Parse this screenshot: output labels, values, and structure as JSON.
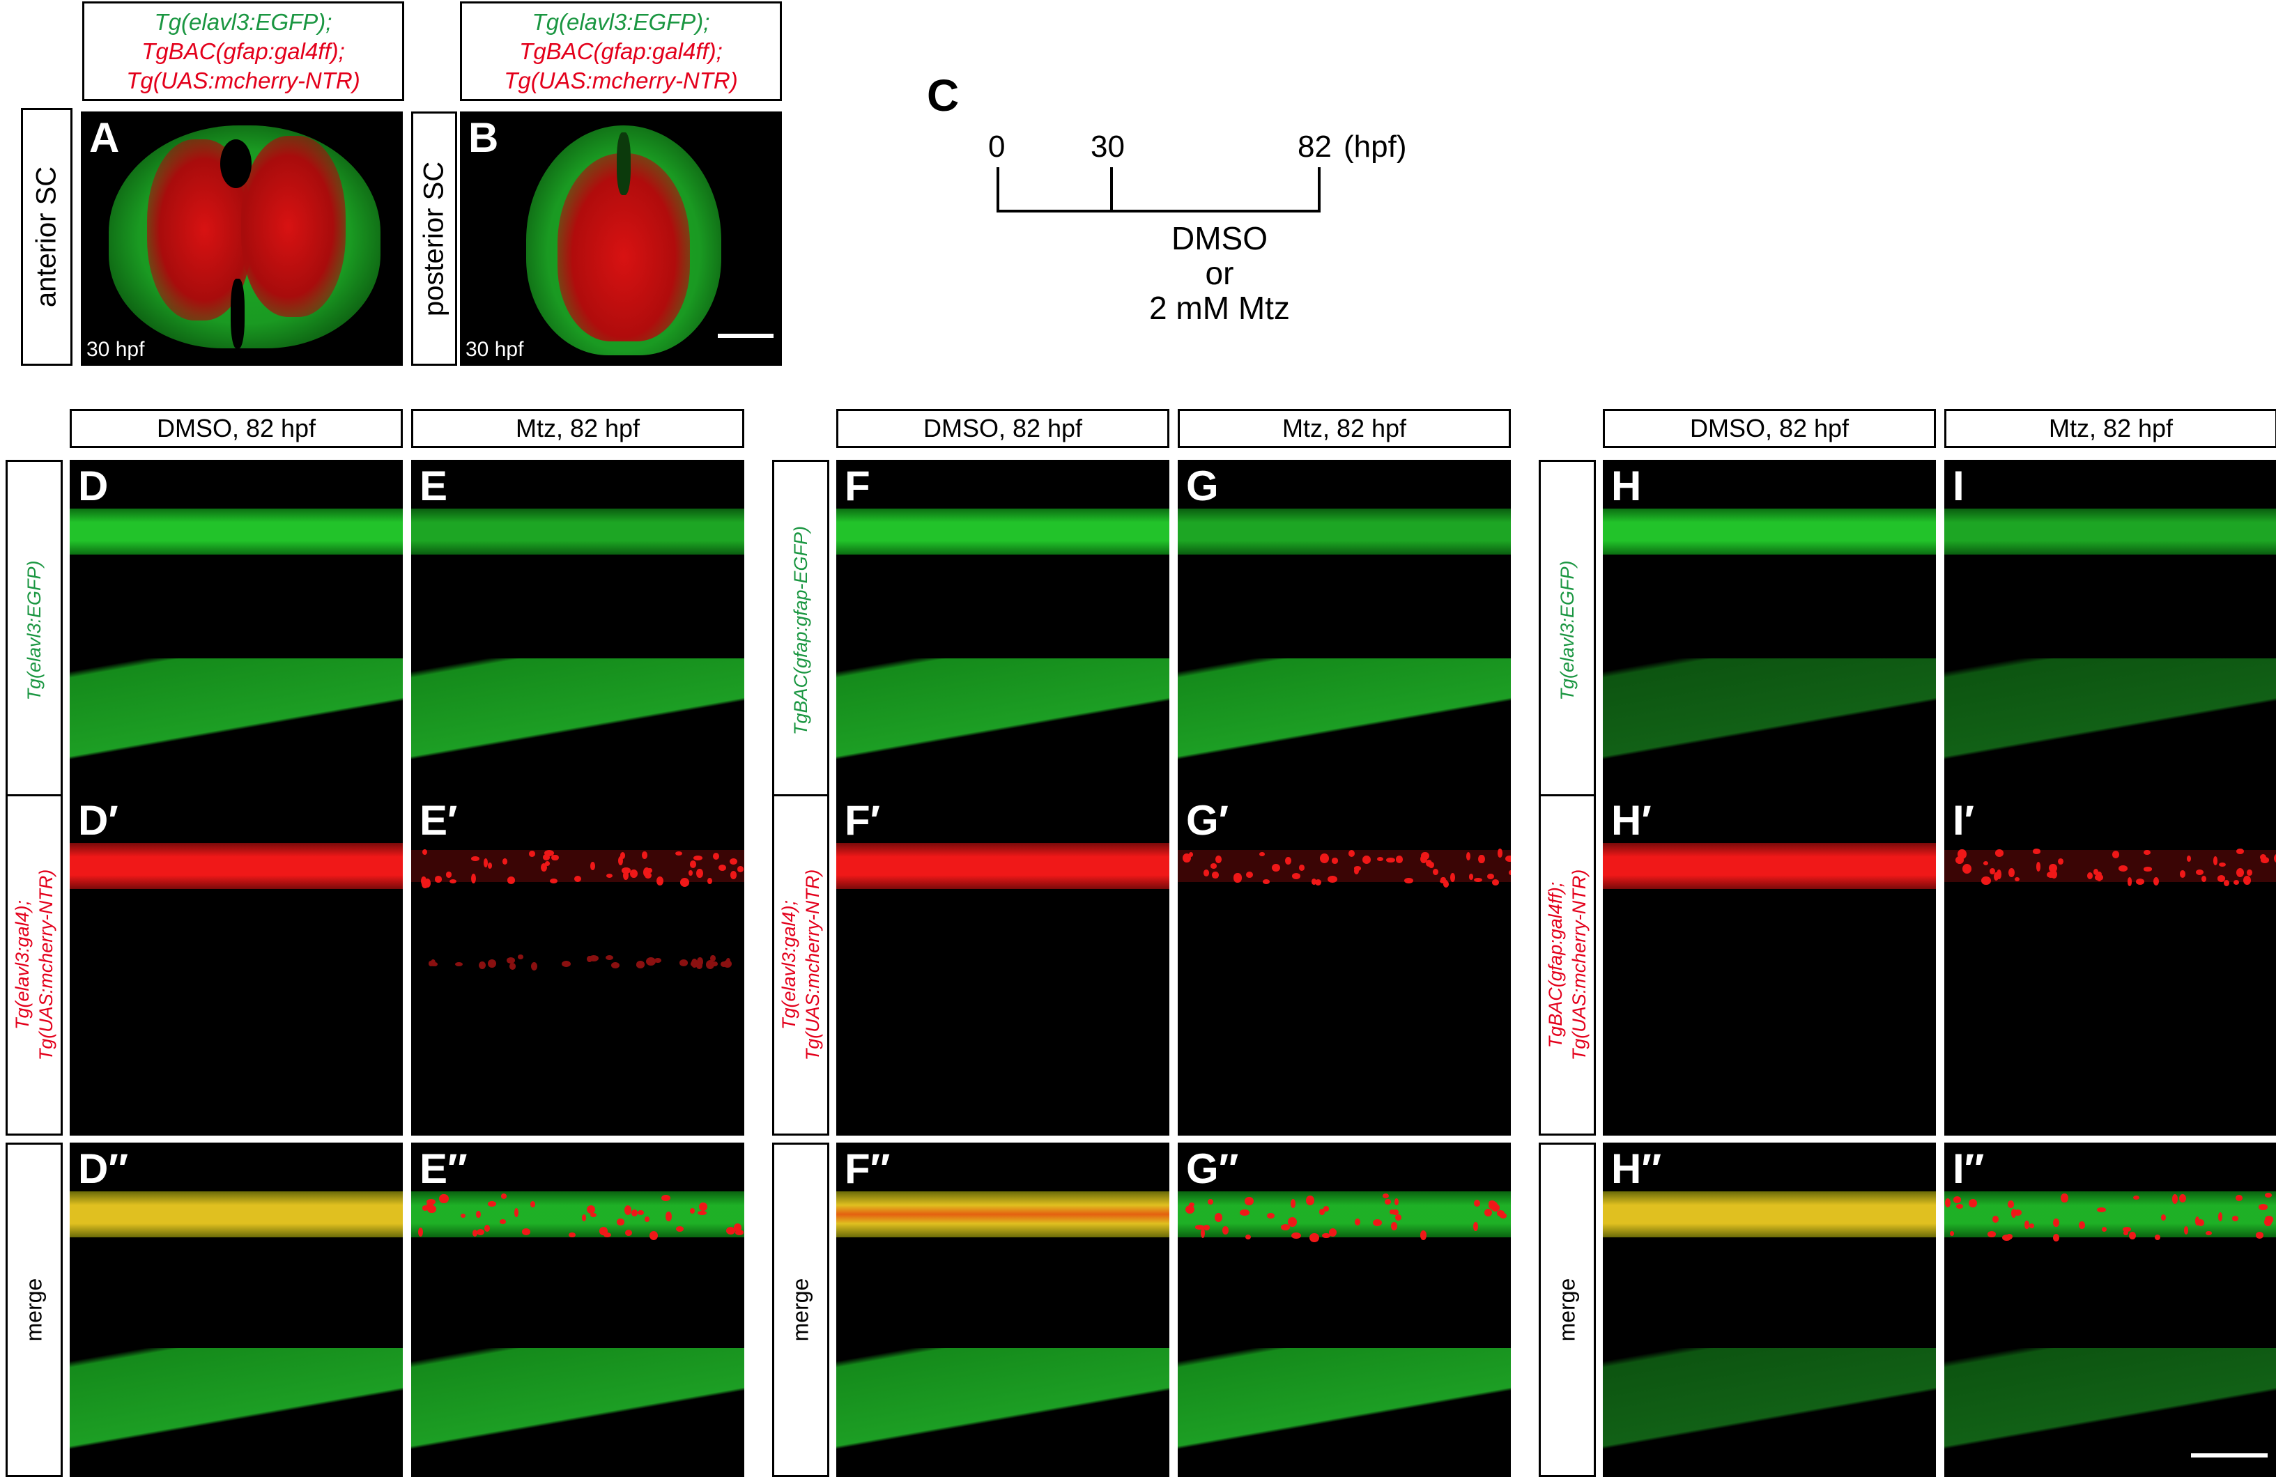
{
  "top": {
    "genotype_A": [
      "Tg(elavl3:EGFP);",
      "TgBAC(gfap:gal4ff);",
      "Tg(UAS:mcherry-NTR)"
    ],
    "genotype_B": [
      "Tg(elavl3:EGFP);",
      "TgBAC(gfap:gal4ff);",
      "Tg(UAS:mcherry-NTR)"
    ],
    "side_A": "anterior SC",
    "side_B": "posterior SC",
    "panel_A": {
      "letter": "A",
      "time": "30 hpf"
    },
    "panel_B": {
      "letter": "B",
      "time": "30 hpf"
    }
  },
  "timeline": {
    "letter": "C",
    "t0": "0",
    "t30": "30",
    "t82": "82",
    "unit": "(hpf)",
    "treatment_1": "DMSO",
    "treatment_or": "or",
    "treatment_2": "2 mM Mtz"
  },
  "groups": [
    {
      "headers": [
        "DMSO, 82 hpf",
        "Mtz, 82 hpf"
      ],
      "row_labels": [
        {
          "lines": [
            "Tg(elavl3:EGFP)"
          ],
          "color": "#1a9641"
        },
        {
          "lines": [
            "Tg(elavl3:gal4);",
            "Tg(UAS:mcherry-NTR)"
          ],
          "color": "#e3001b"
        },
        {
          "lines": [
            "merge"
          ],
          "color": "#000000"
        }
      ],
      "letters": [
        [
          "D",
          "E"
        ],
        [
          "D′",
          "E′"
        ],
        [
          "D″",
          "E″"
        ]
      ]
    },
    {
      "headers": [
        "DMSO, 82 hpf",
        "Mtz, 82 hpf"
      ],
      "row_labels": [
        {
          "lines": [
            "TgBAC(gfap:gfap-EGFP)"
          ],
          "color": "#1a9641"
        },
        {
          "lines": [
            "Tg(elavl3:gal4);",
            "Tg(UAS:mcherry-NTR)"
          ],
          "color": "#e3001b"
        },
        {
          "lines": [
            "merge"
          ],
          "color": "#000000"
        }
      ],
      "letters": [
        [
          "F",
          "G"
        ],
        [
          "F′",
          "G′"
        ],
        [
          "F″",
          "G″"
        ]
      ]
    },
    {
      "headers": [
        "DMSO, 82 hpf",
        "Mtz, 82 hpf"
      ],
      "row_labels": [
        {
          "lines": [
            "Tg(elavl3:EGFP)"
          ],
          "color": "#1a9641"
        },
        {
          "lines": [
            "TgBAC(gfap:gal4ff);",
            "Tg(UAS:mcherry-NTR)"
          ],
          "color": "#e3001b"
        },
        {
          "lines": [
            "merge"
          ],
          "color": "#000000"
        }
      ],
      "letters": [
        [
          "H",
          "I"
        ],
        [
          "H′",
          "I′"
        ],
        [
          "H″",
          "I″"
        ]
      ]
    }
  ],
  "colors": {
    "egfp": "#22c32a",
    "mcherry": "#f01818",
    "merge": "#e0c020",
    "label_green": "#1a9641",
    "label_red": "#e3001b"
  }
}
